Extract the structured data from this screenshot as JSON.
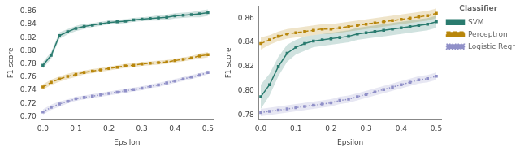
{
  "chart_data": [
    {
      "type": "line",
      "xlabel": "Epsilon",
      "ylabel": "F1 score",
      "x": [
        0.0,
        0.025,
        0.05,
        0.075,
        0.1,
        0.125,
        0.15,
        0.175,
        0.2,
        0.225,
        0.25,
        0.275,
        0.3,
        0.325,
        0.35,
        0.375,
        0.4,
        0.425,
        0.45,
        0.475,
        0.5
      ],
      "series": [
        {
          "name": "SVM",
          "color": "#2a7b6f",
          "marker": "square",
          "line_style": "solid",
          "values": [
            0.778,
            0.793,
            0.823,
            0.829,
            0.834,
            0.837,
            0.839,
            0.841,
            0.843,
            0.844,
            0.845,
            0.847,
            0.848,
            0.849,
            0.85,
            0.851,
            0.853,
            0.854,
            0.855,
            0.856,
            0.858
          ],
          "std": [
            0.005,
            0.005,
            0.005,
            0.004,
            0.004,
            0.004,
            0.003,
            0.003,
            0.003,
            0.003,
            0.003,
            0.003,
            0.003,
            0.003,
            0.004,
            0.004,
            0.004,
            0.004,
            0.004,
            0.005,
            0.005
          ]
        },
        {
          "name": "Perceptron",
          "color": "#b8860b",
          "marker": "square",
          "line_style": "dashed",
          "values": [
            0.745,
            0.752,
            0.757,
            0.761,
            0.764,
            0.767,
            0.769,
            0.771,
            0.773,
            0.775,
            0.777,
            0.778,
            0.78,
            0.781,
            0.782,
            0.783,
            0.785,
            0.787,
            0.789,
            0.792,
            0.794
          ],
          "std": [
            0.004,
            0.004,
            0.004,
            0.004,
            0.004,
            0.003,
            0.003,
            0.003,
            0.003,
            0.003,
            0.003,
            0.003,
            0.003,
            0.003,
            0.003,
            0.003,
            0.003,
            0.003,
            0.003,
            0.004,
            0.004
          ]
        },
        {
          "name": "Logistic Regression",
          "color": "#9090c8",
          "marker": "square",
          "line_style": "dotted",
          "values": [
            0.707,
            0.714,
            0.719,
            0.723,
            0.727,
            0.729,
            0.731,
            0.733,
            0.735,
            0.737,
            0.739,
            0.741,
            0.743,
            0.746,
            0.748,
            0.751,
            0.754,
            0.757,
            0.76,
            0.763,
            0.767
          ],
          "std": [
            0.004,
            0.004,
            0.004,
            0.003,
            0.003,
            0.003,
            0.003,
            0.003,
            0.003,
            0.003,
            0.003,
            0.003,
            0.003,
            0.003,
            0.003,
            0.003,
            0.003,
            0.003,
            0.003,
            0.003,
            0.003
          ]
        }
      ],
      "xlim": [
        -0.005,
        0.515
      ],
      "xticks": [
        {
          "value": 0.0,
          "label": "0.0"
        },
        0.1,
        0.2,
        0.3,
        0.4,
        0.5
      ],
      "ylim": [
        0.695,
        0.868
      ],
      "yticks": [
        {
          "value": 0.7,
          "label": "0.70"
        },
        0.72,
        0.74,
        0.76,
        0.78,
        {
          "value": 0.8,
          "label": "0.80"
        },
        0.82,
        0.84,
        0.86
      ],
      "grid": false
    },
    {
      "type": "line",
      "xlabel": "Epsilon",
      "ylabel": "F1 score",
      "x": [
        0.0,
        0.025,
        0.05,
        0.075,
        0.1,
        0.125,
        0.15,
        0.175,
        0.2,
        0.225,
        0.25,
        0.275,
        0.3,
        0.325,
        0.35,
        0.375,
        0.4,
        0.425,
        0.45,
        0.475,
        0.5
      ],
      "series": [
        {
          "name": "SVM",
          "color": "#2a7b6f",
          "marker": "square",
          "line_style": "solid",
          "values": [
            0.795,
            0.805,
            0.82,
            0.831,
            0.836,
            0.839,
            0.841,
            0.842,
            0.843,
            0.844,
            0.845,
            0.847,
            0.848,
            0.849,
            0.85,
            0.851,
            0.852,
            0.853,
            0.854,
            0.855,
            0.857
          ],
          "std": [
            0.01,
            0.009,
            0.008,
            0.007,
            0.006,
            0.006,
            0.005,
            0.005,
            0.005,
            0.005,
            0.005,
            0.005,
            0.005,
            0.005,
            0.005,
            0.005,
            0.005,
            0.005,
            0.005,
            0.005,
            0.005
          ]
        },
        {
          "name": "Perceptron",
          "color": "#b8860b",
          "marker": "square",
          "line_style": "dashed",
          "values": [
            0.839,
            0.842,
            0.845,
            0.847,
            0.848,
            0.849,
            0.85,
            0.851,
            0.851,
            0.852,
            0.853,
            0.854,
            0.855,
            0.856,
            0.857,
            0.858,
            0.859,
            0.86,
            0.861,
            0.862,
            0.864
          ],
          "std": [
            0.005,
            0.004,
            0.004,
            0.004,
            0.004,
            0.004,
            0.004,
            0.004,
            0.004,
            0.004,
            0.004,
            0.004,
            0.004,
            0.004,
            0.004,
            0.004,
            0.004,
            0.004,
            0.004,
            0.004,
            0.004
          ]
        },
        {
          "name": "Logistic Regression",
          "color": "#9090c8",
          "marker": "square",
          "line_style": "dotted",
          "values": [
            0.782,
            0.783,
            0.784,
            0.785,
            0.786,
            0.787,
            0.788,
            0.789,
            0.79,
            0.792,
            0.793,
            0.795,
            0.797,
            0.799,
            0.801,
            0.803,
            0.805,
            0.807,
            0.809,
            0.81,
            0.812
          ],
          "std": [
            0.003,
            0.003,
            0.003,
            0.003,
            0.003,
            0.003,
            0.003,
            0.003,
            0.003,
            0.003,
            0.003,
            0.003,
            0.003,
            0.003,
            0.003,
            0.003,
            0.003,
            0.003,
            0.003,
            0.003,
            0.003
          ]
        }
      ],
      "xlim": [
        -0.005,
        0.515
      ],
      "xticks": [
        {
          "value": 0.0,
          "label": "0.0"
        },
        0.1,
        0.2,
        0.3,
        0.4,
        0.5
      ],
      "ylim": [
        0.776,
        0.87
      ],
      "yticks": [
        0.78,
        {
          "value": 0.8,
          "label": "0.80"
        },
        0.82,
        0.84,
        0.86
      ],
      "grid": false,
      "legend": "right",
      "legend_title": "Classifier"
    }
  ]
}
